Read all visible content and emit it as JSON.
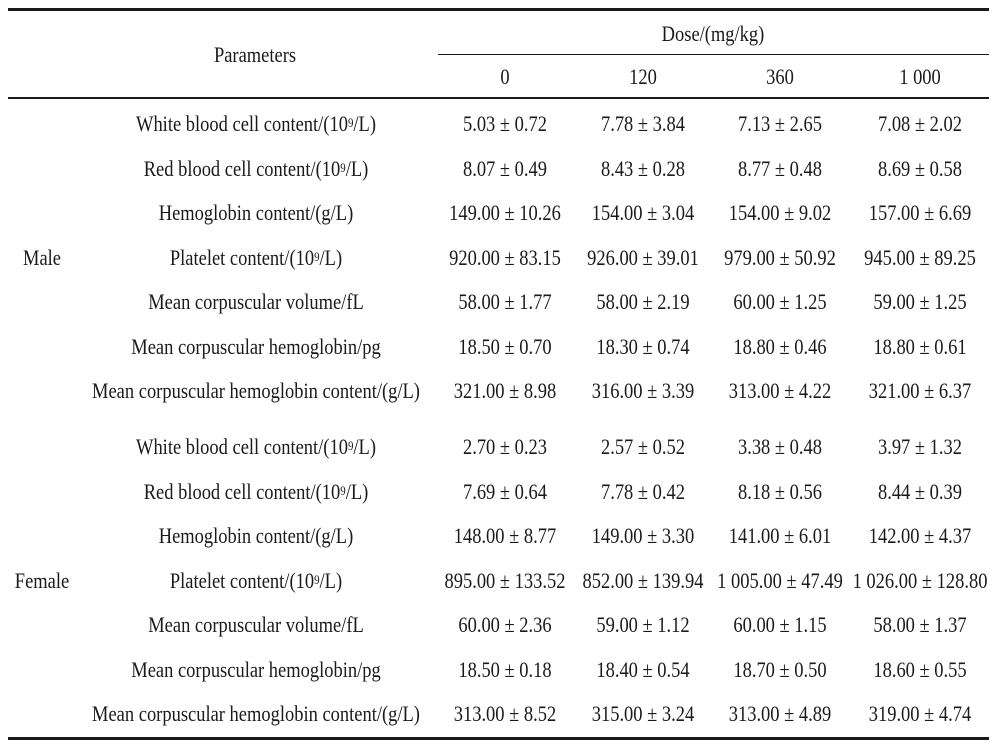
{
  "header": {
    "parameters": "Parameters",
    "dose": "Dose/(mg/kg)",
    "doses": [
      "0",
      "120",
      "360",
      "1 000"
    ]
  },
  "groups": [
    {
      "label": "Male",
      "rows": [
        {
          "parameter": "White blood cell content/(10",
          "sup": "9",
          "unit": "/L)",
          "values": [
            "5.03 ± 0.72",
            "7.78 ± 3.84",
            "7.13 ± 2.65",
            "7.08 ± 2.02"
          ]
        },
        {
          "parameter": "Red blood cell content/(10",
          "sup": "9",
          "unit": "/L)",
          "values": [
            "8.07 ± 0.49",
            "8.43 ± 0.28",
            "8.77 ± 0.48",
            "8.69 ± 0.58"
          ]
        },
        {
          "parameter": "Hemoglobin content/(g/L)",
          "sup": "",
          "unit": "",
          "values": [
            "149.00 ± 10.26",
            "154.00 ± 3.04",
            "154.00 ± 9.02",
            "157.00 ± 6.69"
          ]
        },
        {
          "parameter": "Platelet content/(10",
          "sup": "9",
          "unit": "/L)",
          "values": [
            "920.00 ± 83.15",
            "926.00 ± 39.01",
            "979.00 ± 50.92",
            "945.00 ± 89.25"
          ]
        },
        {
          "parameter": "Mean corpuscular volume/fL",
          "sup": "",
          "unit": "",
          "values": [
            "58.00 ± 1.77",
            "58.00 ± 2.19",
            "60.00 ± 1.25",
            "59.00 ± 1.25"
          ]
        },
        {
          "parameter": "Mean corpuscular hemoglobin/pg",
          "sup": "",
          "unit": "",
          "values": [
            "18.50 ± 0.70",
            "18.30 ± 0.74",
            "18.80 ± 0.46",
            "18.80 ± 0.61"
          ]
        },
        {
          "parameter": "Mean corpuscular hemoglobin content/(g/L)",
          "sup": "",
          "unit": "",
          "values": [
            "321.00 ± 8.98",
            "316.00 ± 3.39",
            "313.00 ± 4.22",
            "321.00 ± 6.37"
          ]
        }
      ]
    },
    {
      "label": "Female",
      "rows": [
        {
          "parameter": "White blood cell content/(10",
          "sup": "9",
          "unit": "/L)",
          "values": [
            "2.70 ± 0.23",
            "2.57 ± 0.52",
            "3.38 ± 0.48",
            "3.97 ± 1.32"
          ]
        },
        {
          "parameter": "Red blood cell content/(10",
          "sup": "9",
          "unit": "/L)",
          "values": [
            "7.69 ± 0.64",
            "7.78 ± 0.42",
            "8.18 ± 0.56",
            "8.44 ± 0.39"
          ]
        },
        {
          "parameter": "Hemoglobin content/(g/L)",
          "sup": "",
          "unit": "",
          "values": [
            "148.00 ± 8.77",
            "149.00 ± 3.30",
            "141.00 ± 6.01",
            "142.00 ± 4.37"
          ]
        },
        {
          "parameter": "Platelet content/(10",
          "sup": "9",
          "unit": "/L)",
          "values": [
            "895.00 ± 133.52",
            "852.00 ± 139.94",
            "1 005.00 ± 47.49",
            "1 026.00 ± 128.80"
          ]
        },
        {
          "parameter": "Mean corpuscular volume/fL",
          "sup": "",
          "unit": "",
          "values": [
            "60.00 ± 2.36",
            "59.00 ± 1.12",
            "60.00 ± 1.15",
            "58.00 ± 1.37"
          ]
        },
        {
          "parameter": "Mean corpuscular hemoglobin/pg",
          "sup": "",
          "unit": "",
          "values": [
            "18.50 ± 0.18",
            "18.40 ± 0.54",
            "18.70 ± 0.50",
            "18.60 ± 0.55"
          ]
        },
        {
          "parameter": "Mean corpuscular hemoglobin content/(g/L)",
          "sup": "",
          "unit": "",
          "values": [
            "313.00 ± 8.52",
            "315.00 ± 3.24",
            "313.00 ± 4.89",
            "319.00 ± 4.74"
          ]
        }
      ]
    }
  ]
}
